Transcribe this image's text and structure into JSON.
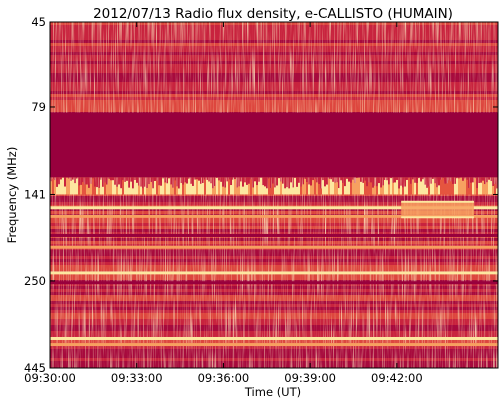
{
  "chart_data": {
    "type": "heatmap",
    "title": "2012/07/13  Radio flux density, e-CALLISTO (HUMAIN)",
    "xlabel": "Time (UT)",
    "ylabel": "Frequency (MHz)",
    "x_range": [
      "09:30:00",
      "09:45:30"
    ],
    "x_ticks": [
      "09:30:00",
      "09:33:00",
      "09:36:00",
      "09:39:00",
      "09:42:00"
    ],
    "y_ticks": [
      "45",
      "79",
      "141",
      "250",
      "445"
    ],
    "y_scale": "log",
    "ylim": [
      445,
      45
    ],
    "colormap": [
      "#98003d",
      "#c8243f",
      "#e5553f",
      "#f7a060",
      "#fde7a0"
    ],
    "features": {
      "saturated_band_mhz": [
        82,
        126
      ],
      "bright_broadband_mhz": [
        126,
        141
      ],
      "horizontal_lines_mhz": [
        154,
        163,
        185,
        200,
        237,
        253,
        366,
        381
      ],
      "burst_box": {
        "time": [
          "09:42:09",
          "09:44:40"
        ],
        "mhz": [
          148,
          164
        ]
      }
    }
  }
}
